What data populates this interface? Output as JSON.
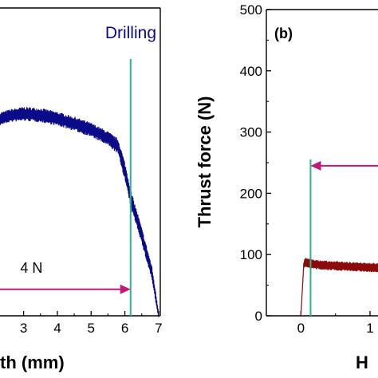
{
  "chart_data": [
    {
      "type": "line",
      "panel": "a",
      "title": "Drilling",
      "xlabel": "Hole depth (mm)",
      "visible_xlabel": "th (mm)",
      "ylabel": "Thrust force (N)",
      "xlim": [
        2.3,
        7.05
      ],
      "ylim": [
        0,
        500
      ],
      "x_ticks": [
        3,
        4,
        5,
        6,
        7
      ],
      "x_tick_labels": [
        "3",
        "4",
        "5",
        "6",
        "7"
      ],
      "grid": false,
      "series": [
        {
          "color": "#0b0b8a",
          "x": [
            2.3,
            2.6,
            3.0,
            3.5,
            4.0,
            4.5,
            5.0,
            5.5,
            5.8,
            6.0,
            6.2,
            6.4,
            6.6,
            6.8,
            7.0
          ],
          "y": [
            320,
            325,
            328,
            326,
            320,
            312,
            302,
            288,
            275,
            235,
            185,
            150,
            110,
            70,
            0
          ],
          "band_half_width": [
            10,
            10,
            11,
            11,
            11,
            11,
            11,
            11,
            12,
            14,
            14,
            12,
            12,
            10,
            6
          ]
        }
      ],
      "annotations": [
        {
          "type": "vline",
          "x": 6.17,
          "color": "#2db38a"
        },
        {
          "type": "arrow",
          "x_from": 2.3,
          "x_to": 6.17,
          "y": 43,
          "color": "#c2187a",
          "direction": "right"
        },
        {
          "type": "text",
          "text": "4 N",
          "x": 2.9,
          "y": 70
        }
      ]
    },
    {
      "type": "line",
      "panel": "b",
      "label": "(b)",
      "xlabel": "Hole depth (mm)",
      "visible_xlabel": "H",
      "ylabel": "Thrust force (N)",
      "xlim": [
        -0.5,
        1.3
      ],
      "ylim": [
        0,
        500
      ],
      "x_ticks": [
        0,
        1
      ],
      "x_tick_labels": [
        "0",
        "1"
      ],
      "y_ticks": [
        0,
        100,
        200,
        300,
        400,
        500
      ],
      "y_tick_labels": [
        "0",
        "100",
        "200",
        "300",
        "400",
        "500"
      ],
      "grid": false,
      "series": [
        {
          "color": "#8b0a0a",
          "x": [
            0.0,
            0.04,
            0.06,
            0.1,
            0.2,
            0.4,
            0.6,
            0.8,
            1.0,
            1.3
          ],
          "y": [
            0,
            82,
            88,
            86,
            84,
            82,
            81,
            80,
            79,
            78
          ],
          "band_half_width": [
            0,
            4,
            7,
            7,
            7,
            7,
            7,
            7,
            7,
            7
          ]
        }
      ],
      "annotations": [
        {
          "type": "vline",
          "x": 0.14,
          "color": "#2db38a"
        },
        {
          "type": "arrow",
          "x_from": 1.3,
          "x_to": 0.14,
          "y": 245,
          "color": "#c2187a",
          "direction": "left"
        }
      ]
    }
  ]
}
